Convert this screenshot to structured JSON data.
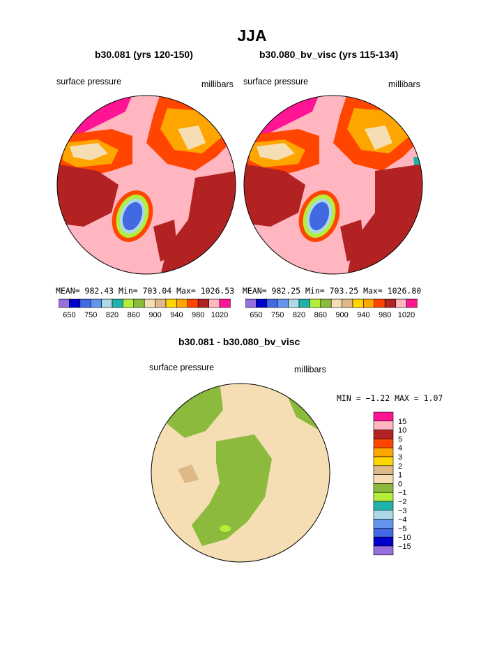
{
  "title": "JJA",
  "panels": [
    {
      "title": "b30.081 (yrs 120-150)",
      "left_label": "surface pressure",
      "right_label": "millibars",
      "stats": "MEAN= 982.43   Min= 703.04   Max= 1026.53",
      "colorbar_labels": [
        "650",
        "750",
        "820",
        "860",
        "900",
        "940",
        "980",
        "1020"
      ]
    },
    {
      "title": "b30.080_bv_visc (yrs 115-134)",
      "left_label": "surface pressure",
      "right_label": "millibars",
      "stats": "MEAN= 982.25   Min= 703.25   Max= 1026.80",
      "colorbar_labels": [
        "650",
        "750",
        "820",
        "860",
        "900",
        "940",
        "980",
        "1020"
      ]
    }
  ],
  "diff_panel": {
    "title": "b30.081 - b30.080_bv_visc",
    "left_label": "surface pressure",
    "right_label": "millibars",
    "minmax": "MIN =   −1.22 MAX =    1.07",
    "colorbar_labels": [
      "15",
      "10",
      "5",
      "4",
      "3",
      "2",
      "1",
      "0",
      "−1",
      "−2",
      "−3",
      "−4",
      "−5",
      "−10",
      "−15"
    ]
  },
  "colors": {
    "abs_scale": [
      "#9370db",
      "#0000cd",
      "#4169e1",
      "#6495ed",
      "#add8e6",
      "#20b2aa",
      "#b3ee3a",
      "#8bba3d",
      "#f5deb3",
      "#deb887",
      "#ffd700",
      "#ffa500",
      "#ff4500",
      "#b22222",
      "#ffb6c1",
      "#ff1493"
    ],
    "diff_scale": [
      "#ff1493",
      "#ffb6c1",
      "#b22222",
      "#ff4500",
      "#ffa500",
      "#ffd700",
      "#deb887",
      "#f5deb3",
      "#8bba3d",
      "#b3ee3a",
      "#20b2aa",
      "#add8e6",
      "#6495ed",
      "#4169e1",
      "#0000cd",
      "#9370db"
    ]
  }
}
